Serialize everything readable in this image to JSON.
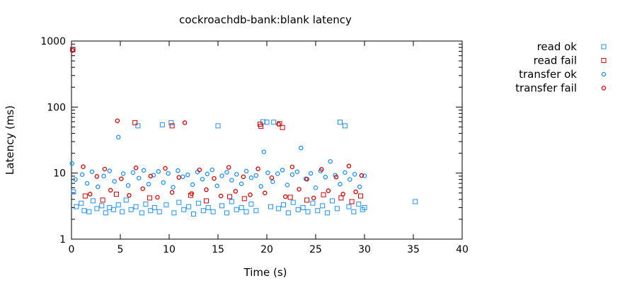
{
  "chart_data": {
    "type": "scatter",
    "title": "cockroachdb-bank:blank latency",
    "xlabel": "Time (s)",
    "ylabel": "Latency (ms)",
    "xlim": [
      0,
      40
    ],
    "ylim": [
      1,
      1000
    ],
    "yscale": "log",
    "x_ticks": [
      "0",
      "5",
      "10",
      "15",
      "20",
      "25",
      "30",
      "35",
      "40"
    ],
    "y_ticks": [
      "1",
      "10",
      "100",
      "1000"
    ],
    "grid": false,
    "legend_position": "top-right outside",
    "series": [
      {
        "name": "read ok",
        "marker": "square",
        "color": "#1e90ff",
        "points": [
          [
            0.1,
            750
          ],
          [
            0.2,
            5.2
          ],
          [
            0.5,
            3.1
          ],
          [
            1.0,
            3.5
          ],
          [
            1.3,
            2.7
          ],
          [
            1.8,
            2.6
          ],
          [
            2.2,
            3.8
          ],
          [
            2.6,
            2.9
          ],
          [
            3.1,
            3.2
          ],
          [
            3.5,
            2.5
          ],
          [
            3.9,
            3.0
          ],
          [
            4.3,
            2.8
          ],
          [
            4.8,
            3.3
          ],
          [
            5.2,
            2.6
          ],
          [
            5.6,
            3.9
          ],
          [
            6.1,
            2.8
          ],
          [
            6.6,
            3.1
          ],
          [
            6.8,
            52
          ],
          [
            7.2,
            2.5
          ],
          [
            7.6,
            3.4
          ],
          [
            8.1,
            2.7
          ],
          [
            8.5,
            3.0
          ],
          [
            9.0,
            2.6
          ],
          [
            9.3,
            54
          ],
          [
            9.7,
            3.3
          ],
          [
            10.2,
            58
          ],
          [
            10.5,
            2.5
          ],
          [
            11.0,
            3.6
          ],
          [
            11.5,
            2.8
          ],
          [
            12.0,
            3.1
          ],
          [
            12.5,
            2.4
          ],
          [
            13.0,
            3.5
          ],
          [
            13.5,
            2.7
          ],
          [
            14.0,
            3.0
          ],
          [
            14.5,
            2.6
          ],
          [
            15.0,
            52
          ],
          [
            15.4,
            3.2
          ],
          [
            15.9,
            2.5
          ],
          [
            16.4,
            3.7
          ],
          [
            16.9,
            2.8
          ],
          [
            17.4,
            3.0
          ],
          [
            17.9,
            2.6
          ],
          [
            18.4,
            3.4
          ],
          [
            18.9,
            2.7
          ],
          [
            19.6,
            60
          ],
          [
            20.0,
            59
          ],
          [
            20.4,
            3.1
          ],
          [
            20.7,
            59
          ],
          [
            21.2,
            2.9
          ],
          [
            21.7,
            3.3
          ],
          [
            22.2,
            2.5
          ],
          [
            22.7,
            3.6
          ],
          [
            23.2,
            2.8
          ],
          [
            23.7,
            3.0
          ],
          [
            24.2,
            2.6
          ],
          [
            24.7,
            3.5
          ],
          [
            25.2,
            2.7
          ],
          [
            25.7,
            3.2
          ],
          [
            26.2,
            2.5
          ],
          [
            26.7,
            3.8
          ],
          [
            27.2,
            2.9
          ],
          [
            27.5,
            59
          ],
          [
            28.0,
            52
          ],
          [
            28.4,
            3.1
          ],
          [
            28.9,
            2.6
          ],
          [
            29.4,
            3.4
          ],
          [
            29.8,
            2.8
          ],
          [
            30.0,
            3.0
          ],
          [
            35.2,
            3.7
          ]
        ]
      },
      {
        "name": "read fail",
        "marker": "square",
        "color": "#d40000",
        "points": [
          [
            0.15,
            740
          ],
          [
            1.4,
            4.5
          ],
          [
            3.2,
            3.9
          ],
          [
            4.6,
            4.8
          ],
          [
            6.5,
            58
          ],
          [
            8.0,
            4.2
          ],
          [
            10.3,
            52
          ],
          [
            12.2,
            4.6
          ],
          [
            13.8,
            3.8
          ],
          [
            16.2,
            4.4
          ],
          [
            17.7,
            4.1
          ],
          [
            19.3,
            55
          ],
          [
            19.4,
            51
          ],
          [
            21.3,
            56
          ],
          [
            21.6,
            49
          ],
          [
            22.4,
            4.3
          ],
          [
            24.1,
            3.9
          ],
          [
            25.8,
            4.7
          ],
          [
            27.6,
            4.2
          ],
          [
            28.7,
            3.7
          ],
          [
            29.6,
            4.5
          ]
        ]
      },
      {
        "name": "transfer ok",
        "marker": "circle",
        "color": "#1e90ff",
        "points": [
          [
            0.05,
            14
          ],
          [
            0.4,
            8.0
          ],
          [
            1.1,
            9.5
          ],
          [
            1.6,
            7.0
          ],
          [
            2.1,
            10.5
          ],
          [
            2.7,
            6.2
          ],
          [
            3.3,
            9.0
          ],
          [
            3.9,
            10.8
          ],
          [
            4.4,
            7.5
          ],
          [
            4.8,
            35
          ],
          [
            5.3,
            9.8
          ],
          [
            5.8,
            6.5
          ],
          [
            6.3,
            10.2
          ],
          [
            6.9,
            8.4
          ],
          [
            7.4,
            11.0
          ],
          [
            7.9,
            6.8
          ],
          [
            8.4,
            9.3
          ],
          [
            8.9,
            10.6
          ],
          [
            9.4,
            7.2
          ],
          [
            9.9,
            9.9
          ],
          [
            10.4,
            6.1
          ],
          [
            10.9,
            10.9
          ],
          [
            11.4,
            8.8
          ],
          [
            11.9,
            9.4
          ],
          [
            12.4,
            6.7
          ],
          [
            12.9,
            10.4
          ],
          [
            13.4,
            8.1
          ],
          [
            13.9,
            9.7
          ],
          [
            14.4,
            11.2
          ],
          [
            14.9,
            6.4
          ],
          [
            15.4,
            9.1
          ],
          [
            15.9,
            10.3
          ],
          [
            16.4,
            7.8
          ],
          [
            16.9,
            9.6
          ],
          [
            17.4,
            6.9
          ],
          [
            17.9,
            10.7
          ],
          [
            18.4,
            8.5
          ],
          [
            18.9,
            9.2
          ],
          [
            19.4,
            6.3
          ],
          [
            19.7,
            21
          ],
          [
            20.1,
            10.1
          ],
          [
            20.6,
            7.4
          ],
          [
            21.1,
            9.8
          ],
          [
            21.6,
            11.1
          ],
          [
            22.1,
            6.6
          ],
          [
            22.6,
            9.5
          ],
          [
            23.1,
            10.5
          ],
          [
            23.5,
            24
          ],
          [
            24.0,
            8.2
          ],
          [
            24.5,
            9.9
          ],
          [
            25.0,
            6.0
          ],
          [
            25.5,
            10.8
          ],
          [
            26.0,
            8.7
          ],
          [
            26.5,
            15
          ],
          [
            27.0,
            9.3
          ],
          [
            27.5,
            6.8
          ],
          [
            28.0,
            10.2
          ],
          [
            28.5,
            8.0
          ],
          [
            29.0,
            9.6
          ],
          [
            29.5,
            6.2
          ],
          [
            30.0,
            9.1
          ]
        ]
      },
      {
        "name": "transfer fail",
        "marker": "circle",
        "color": "#d40000",
        "points": [
          [
            0.1,
            720
          ],
          [
            1.2,
            12.5
          ],
          [
            1.9,
            4.8
          ],
          [
            2.6,
            8.9
          ],
          [
            3.4,
            11.5
          ],
          [
            4.0,
            5.5
          ],
          [
            4.7,
            62
          ],
          [
            5.1,
            8.2
          ],
          [
            5.9,
            4.6
          ],
          [
            6.6,
            12.0
          ],
          [
            7.3,
            5.8
          ],
          [
            8.1,
            9.0
          ],
          [
            8.8,
            4.3
          ],
          [
            9.6,
            11.8
          ],
          [
            10.3,
            5.1
          ],
          [
            11.0,
            8.6
          ],
          [
            11.6,
            58
          ],
          [
            12.3,
            4.9
          ],
          [
            13.1,
            11.2
          ],
          [
            13.8,
            5.6
          ],
          [
            14.6,
            8.3
          ],
          [
            15.3,
            4.5
          ],
          [
            16.1,
            12.2
          ],
          [
            16.8,
            5.3
          ],
          [
            17.6,
            8.8
          ],
          [
            18.3,
            4.7
          ],
          [
            19.1,
            11.6
          ],
          [
            19.8,
            5.0
          ],
          [
            20.5,
            8.5
          ],
          [
            21.2,
            55
          ],
          [
            21.9,
            4.4
          ],
          [
            22.6,
            12.4
          ],
          [
            23.3,
            5.7
          ],
          [
            24.1,
            8.1
          ],
          [
            24.8,
            4.2
          ],
          [
            25.6,
            11.4
          ],
          [
            26.3,
            5.4
          ],
          [
            27.1,
            8.7
          ],
          [
            27.8,
            4.8
          ],
          [
            28.4,
            12.8
          ],
          [
            29.1,
            5.2
          ],
          [
            29.7,
            9.2
          ]
        ]
      }
    ]
  }
}
